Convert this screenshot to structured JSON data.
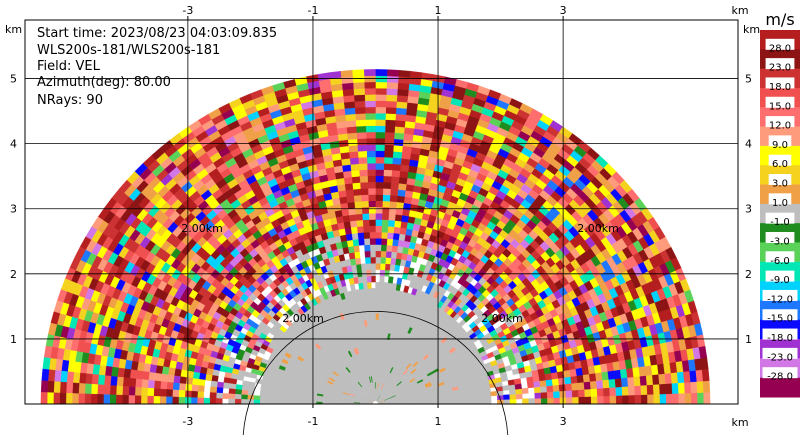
{
  "info": {
    "start_time": "Start time: 2023/08/23 04:03:09.835",
    "instrument": "WLS200s-181/WLS200s-181",
    "field": "Field: VEL",
    "azimuth": "Azimuth(deg): 80.00",
    "nrays": "NRays: 90"
  },
  "axes": {
    "unit_label": "km",
    "x_ticks": [
      "-3",
      "-1",
      "1",
      "3"
    ],
    "y_ticks": [
      "1",
      "2",
      "3",
      "4",
      "5"
    ]
  },
  "rings": [
    "2.00km",
    "2.00km",
    "2.00km",
    "2.00km"
  ],
  "colorbar": {
    "unit": "m/s",
    "labels": [
      "28.0",
      "23.0",
      "18.0",
      "15.0",
      "12.0",
      "9.0",
      "6.0",
      "3.0",
      "1.0",
      "-1.0",
      "-3.0",
      "-6.0",
      "-9.0",
      "-12.0",
      "-15.0",
      "-18.0",
      "-23.0",
      "-28.0"
    ],
    "colors": [
      "#b41e1e",
      "#8c1414",
      "#cd3232",
      "#f05050",
      "#ff6e6e",
      "#ff9b7d",
      "#ffff00",
      "#f5d21e",
      "#f0a046",
      "#bebebe",
      "#1e8c1e",
      "#5ad25a",
      "#00e6b4",
      "#00d2ff",
      "#1e78ff",
      "#0a0aff",
      "#a032d2",
      "#d278e6",
      "#960050"
    ]
  },
  "chart_data": {
    "type": "heatmap",
    "title": "",
    "field": "VEL",
    "xlabel": "km",
    "ylabel": "km",
    "xlim": [
      -5.7,
      5.7
    ],
    "ylim": [
      0,
      5.9
    ],
    "x_ticks": [
      -3,
      -1,
      1,
      3
    ],
    "y_ticks": [
      1,
      2,
      3,
      4,
      5
    ],
    "grid": true,
    "colorbar_unit": "m/s",
    "colorbar_levels": [
      28,
      23,
      18,
      15,
      12,
      9,
      6,
      3,
      1,
      -1,
      -3,
      -6,
      -9,
      -12,
      -15,
      -18,
      -23,
      -28
    ],
    "max_range_km": 5.3,
    "near_range_clear_km": 2.0,
    "nrays": 90
  }
}
